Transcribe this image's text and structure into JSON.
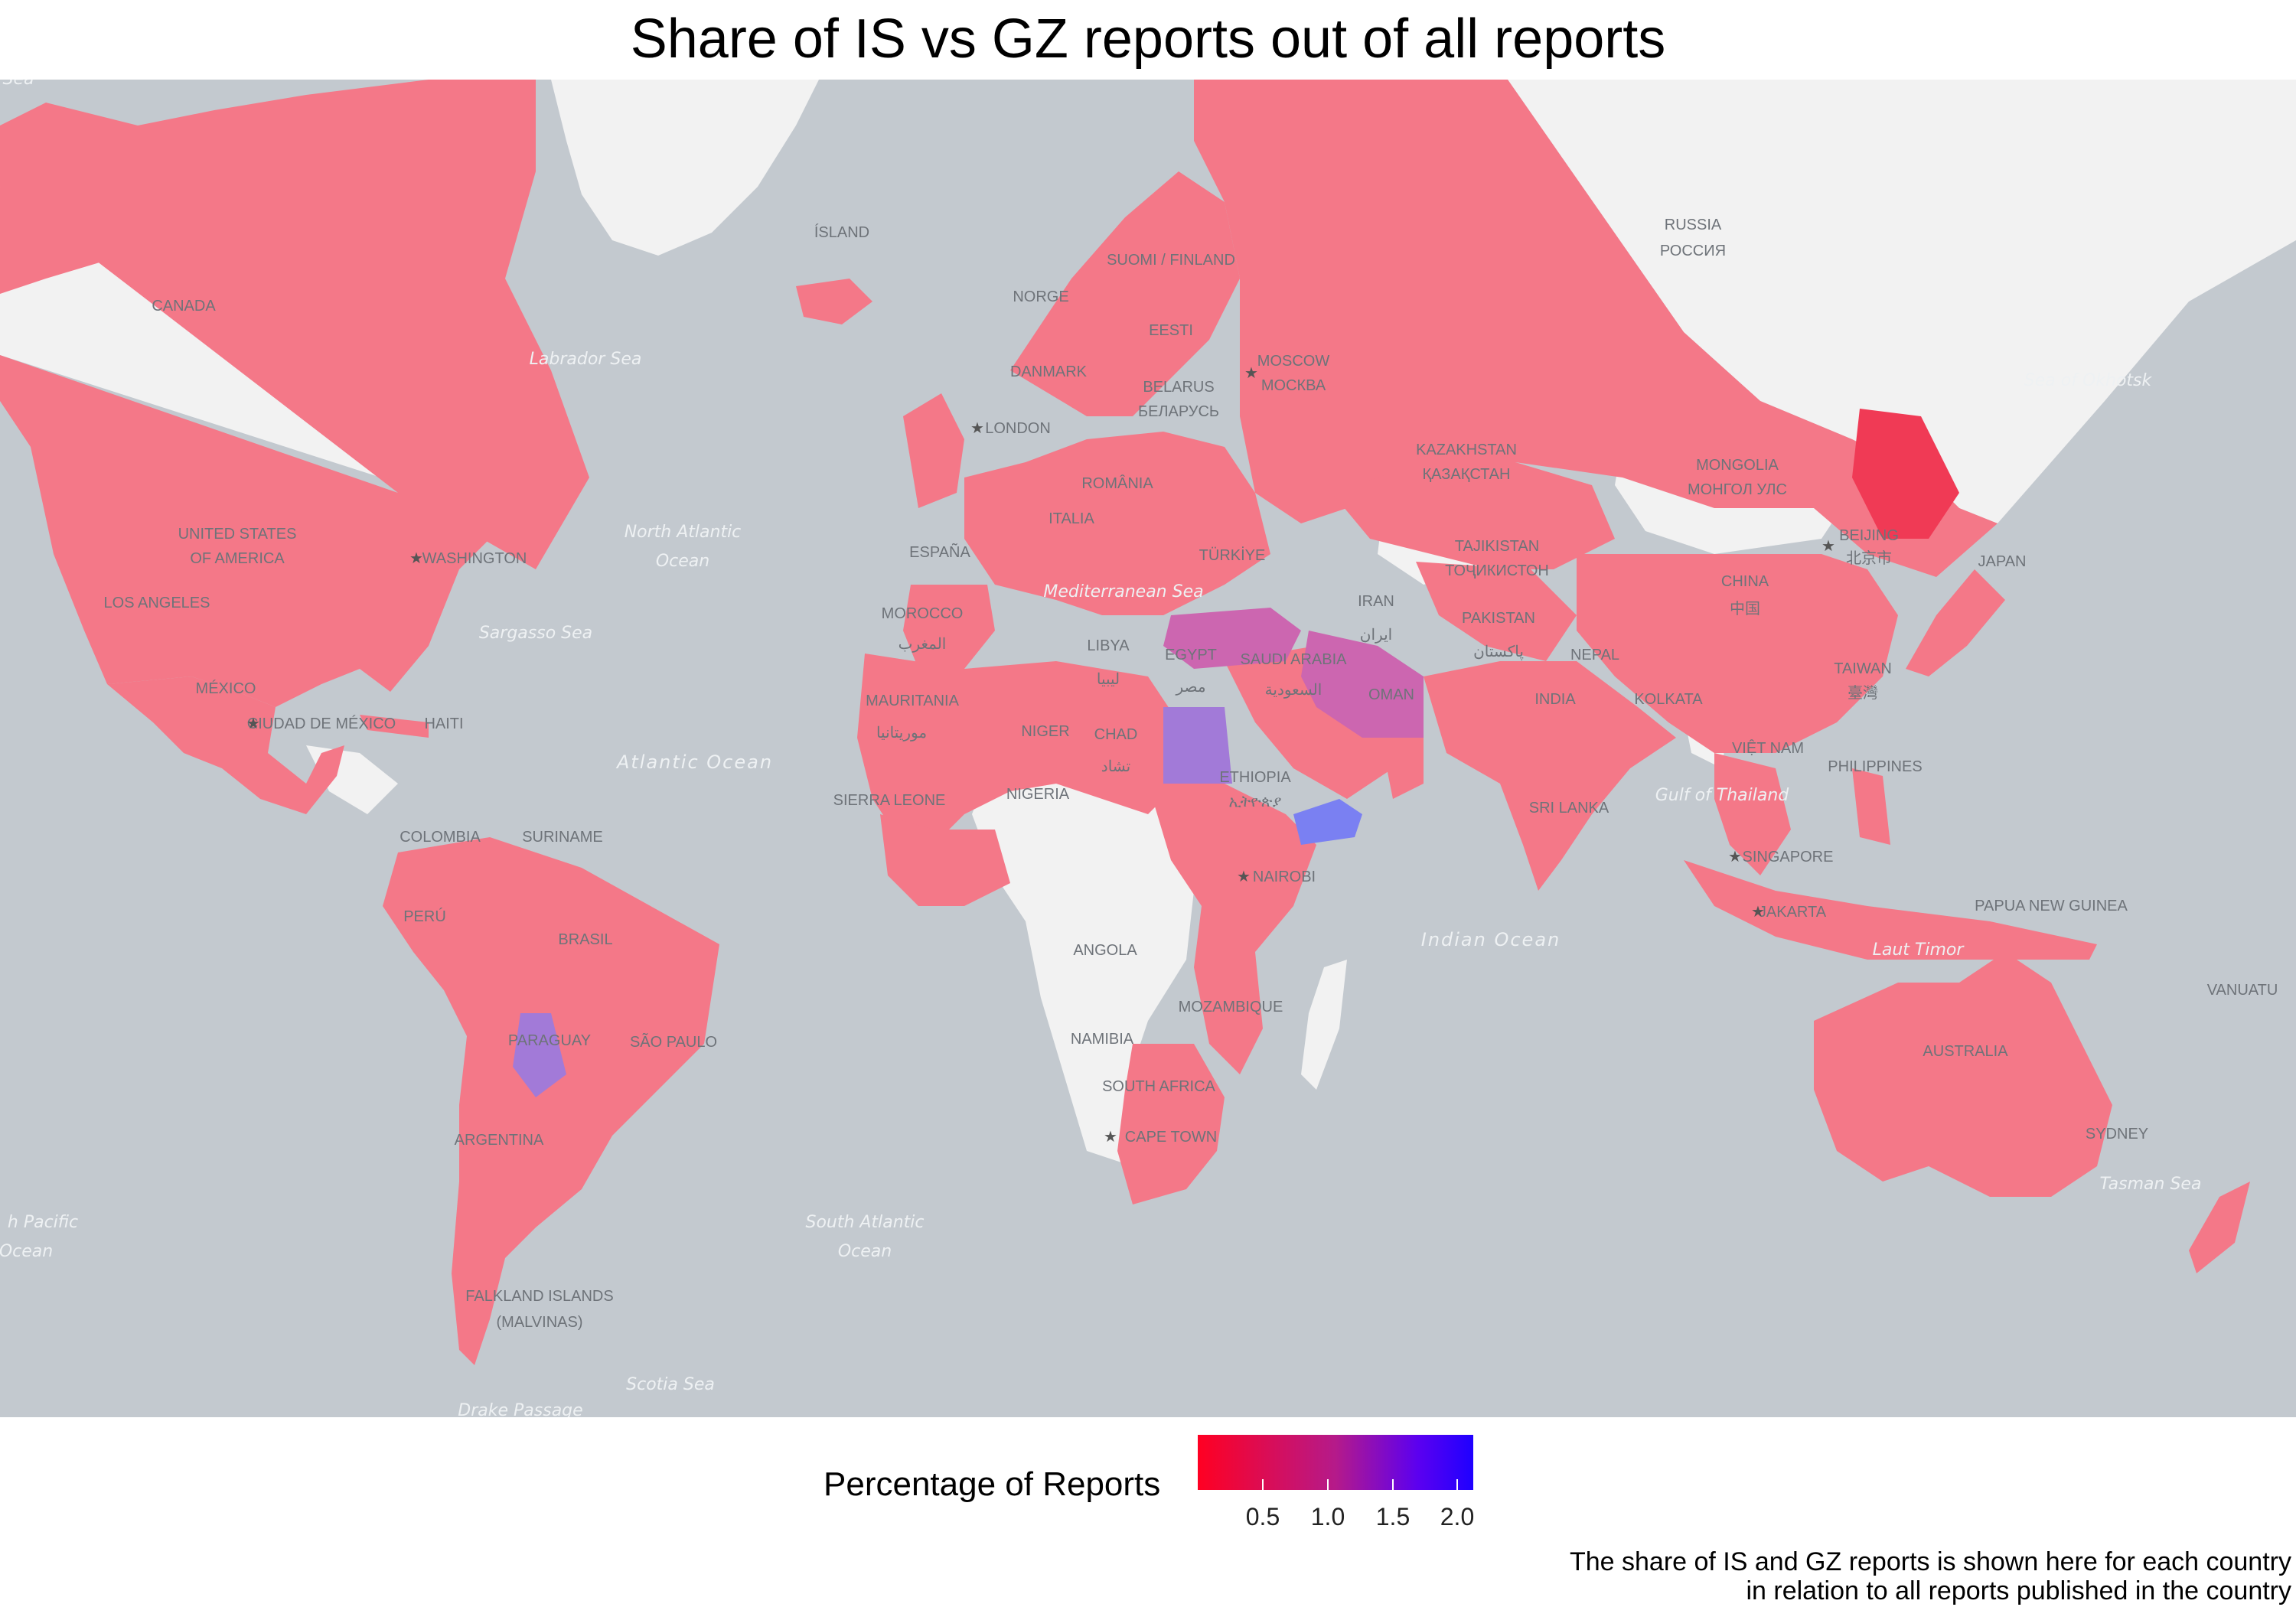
{
  "title": "Share of IS vs GZ reports out of all reports",
  "legend": {
    "title": "Percentage of Reports",
    "ticks": [
      "0.5",
      "1.0",
      "1.5",
      "2.0"
    ],
    "colors": {
      "low": "#ff0022",
      "mid": "#b51a8a",
      "high": "#1f00ff"
    }
  },
  "caption": {
    "line1": "The share of IS and GZ reports is shown here for each country",
    "line2": "in relation to all reports published in the country"
  },
  "colors": {
    "ocean": "#c3c9cf",
    "land_nodata": "#f2f2f2",
    "fill_default": "#f47888",
    "fill_purple": "#cc66b0",
    "fill_violet": "#a27ad8",
    "fill_blue": "#7a80f2",
    "fill_red": "#f03a55"
  },
  "map_labels": {
    "canada": "CANADA",
    "usa_1": "UNITED STATES",
    "usa_2": "OF AMERICA",
    "washington": "WASHINGTON",
    "los_angeles": "LOS ANGELES",
    "mexico": "MÉXICO",
    "ciudad_mexico": "CIUDAD DE MÉXICO",
    "haiti": "HAITI",
    "colombia": "COLOMBIA",
    "suriname": "SURINAME",
    "peru": "PERÚ",
    "brasil": "BRASIL",
    "paraguay": "PARAGUAY",
    "sao_paulo": "SÃO PAULO",
    "argentina": "ARGENTINA",
    "falkland_1": "FALKLAND ISLANDS",
    "falkland_2": "(MALVINAS)",
    "island": "ÍSLAND",
    "norge": "NORGE",
    "suomi": "SUOMI / FINLAND",
    "eesti": "EESTI",
    "danmark": "DANMARK",
    "london": "LONDON",
    "belarus_1": "BELARUS",
    "belarus_2": "БЕЛАРУСЬ",
    "moscow_1": "MOSCOW",
    "moscow_2": "МОСКВА",
    "romania": "ROMÂNIA",
    "italia": "ITALIA",
    "espana": "ESPAÑA",
    "morocco_1": "MOROCCO",
    "morocco_2": "المغرب",
    "libya_1": "LIBYA",
    "libya_2": "ليبيا",
    "egypt_1": "EGYPT",
    "egypt_2": "مصر",
    "turkiye": "TÜRKİYE",
    "saudi_1": "SAUDI ARABIA",
    "saudi_2": "السعودية",
    "iran_1": "IRAN",
    "iran_2": "ایران",
    "oman": "OMAN",
    "mauritania_1": "MAURITANIA",
    "mauritania_2": "موريتانيا",
    "niger": "NIGER",
    "chad_1": "CHAD",
    "chad_2": "تشاد",
    "nigeria": "NIGERIA",
    "sierra_leone": "SIERRA LEONE",
    "ethiopia_1": "ETHIOPIA",
    "ethiopia_2": "ኢትዮጵያ",
    "nairobi": "NAIROBI",
    "angola": "ANGOLA",
    "mozambique": "MOZAMBIQUE",
    "namibia": "NAMIBIA",
    "south_africa": "SOUTH AFRICA",
    "cape_town": "CAPE TOWN",
    "russia_1": "RUSSIA",
    "russia_2": "РОССИЯ",
    "kazakhstan_1": "KAZAKHSTAN",
    "kazakhstan_2": "ҚАЗАҚСТАН",
    "mongolia_1": "MONGOLIA",
    "mongolia_2": "МОНГОЛ УЛС",
    "tajikistan_1": "TAJIKISTAN",
    "tajikistan_2": "ТОҶИКИСТОН",
    "pakistan_1": "PAKISTAN",
    "pakistan_2": "پاکستان",
    "nepal": "NEPAL",
    "india": "INDIA",
    "china_1": "CHINA",
    "china_2": "中国",
    "beijing_1": "BEIJING",
    "beijing_2": "北京市",
    "japan": "JAPAN",
    "taiwan_1": "TAIWAN",
    "taiwan_2": "臺灣",
    "kolkata": "KOLKATA",
    "vietnam": "VIỆT NAM",
    "philippines": "PHILIPPINES",
    "sri_lanka": "SRI LANKA",
    "singapore": "SINGAPORE",
    "jakarta": "JAKARTA",
    "papua": "PAPUA NEW GUINEA",
    "vanuatu": "VANUATU",
    "australia": "AUSTRALIA",
    "sydney": "SYDNEY"
  },
  "ocean_labels": {
    "labrador": "Labrador Sea",
    "north_atlantic_1": "North Atlantic",
    "north_atlantic_2": "Ocean",
    "sargasso": "Sargasso Sea",
    "atlantic": "Atlantic Ocean",
    "mediterranean": "Mediterranean Sea",
    "south_atlantic_1": "South Atlantic",
    "south_atlantic_2": "Ocean",
    "scotia": "Scotia Sea",
    "drake": "Drake Passage",
    "south_pacific_1": "h Pacific",
    "south_pacific_2": "Ocean",
    "indian": "Indian Ocean",
    "gulf_thailand": "Gulf of Thailand",
    "laut_timor": "Laut Timor",
    "tasman": "Tasman Sea",
    "okhotsk": "Sea of Okhotsk",
    "sea_corner": "Sea"
  }
}
